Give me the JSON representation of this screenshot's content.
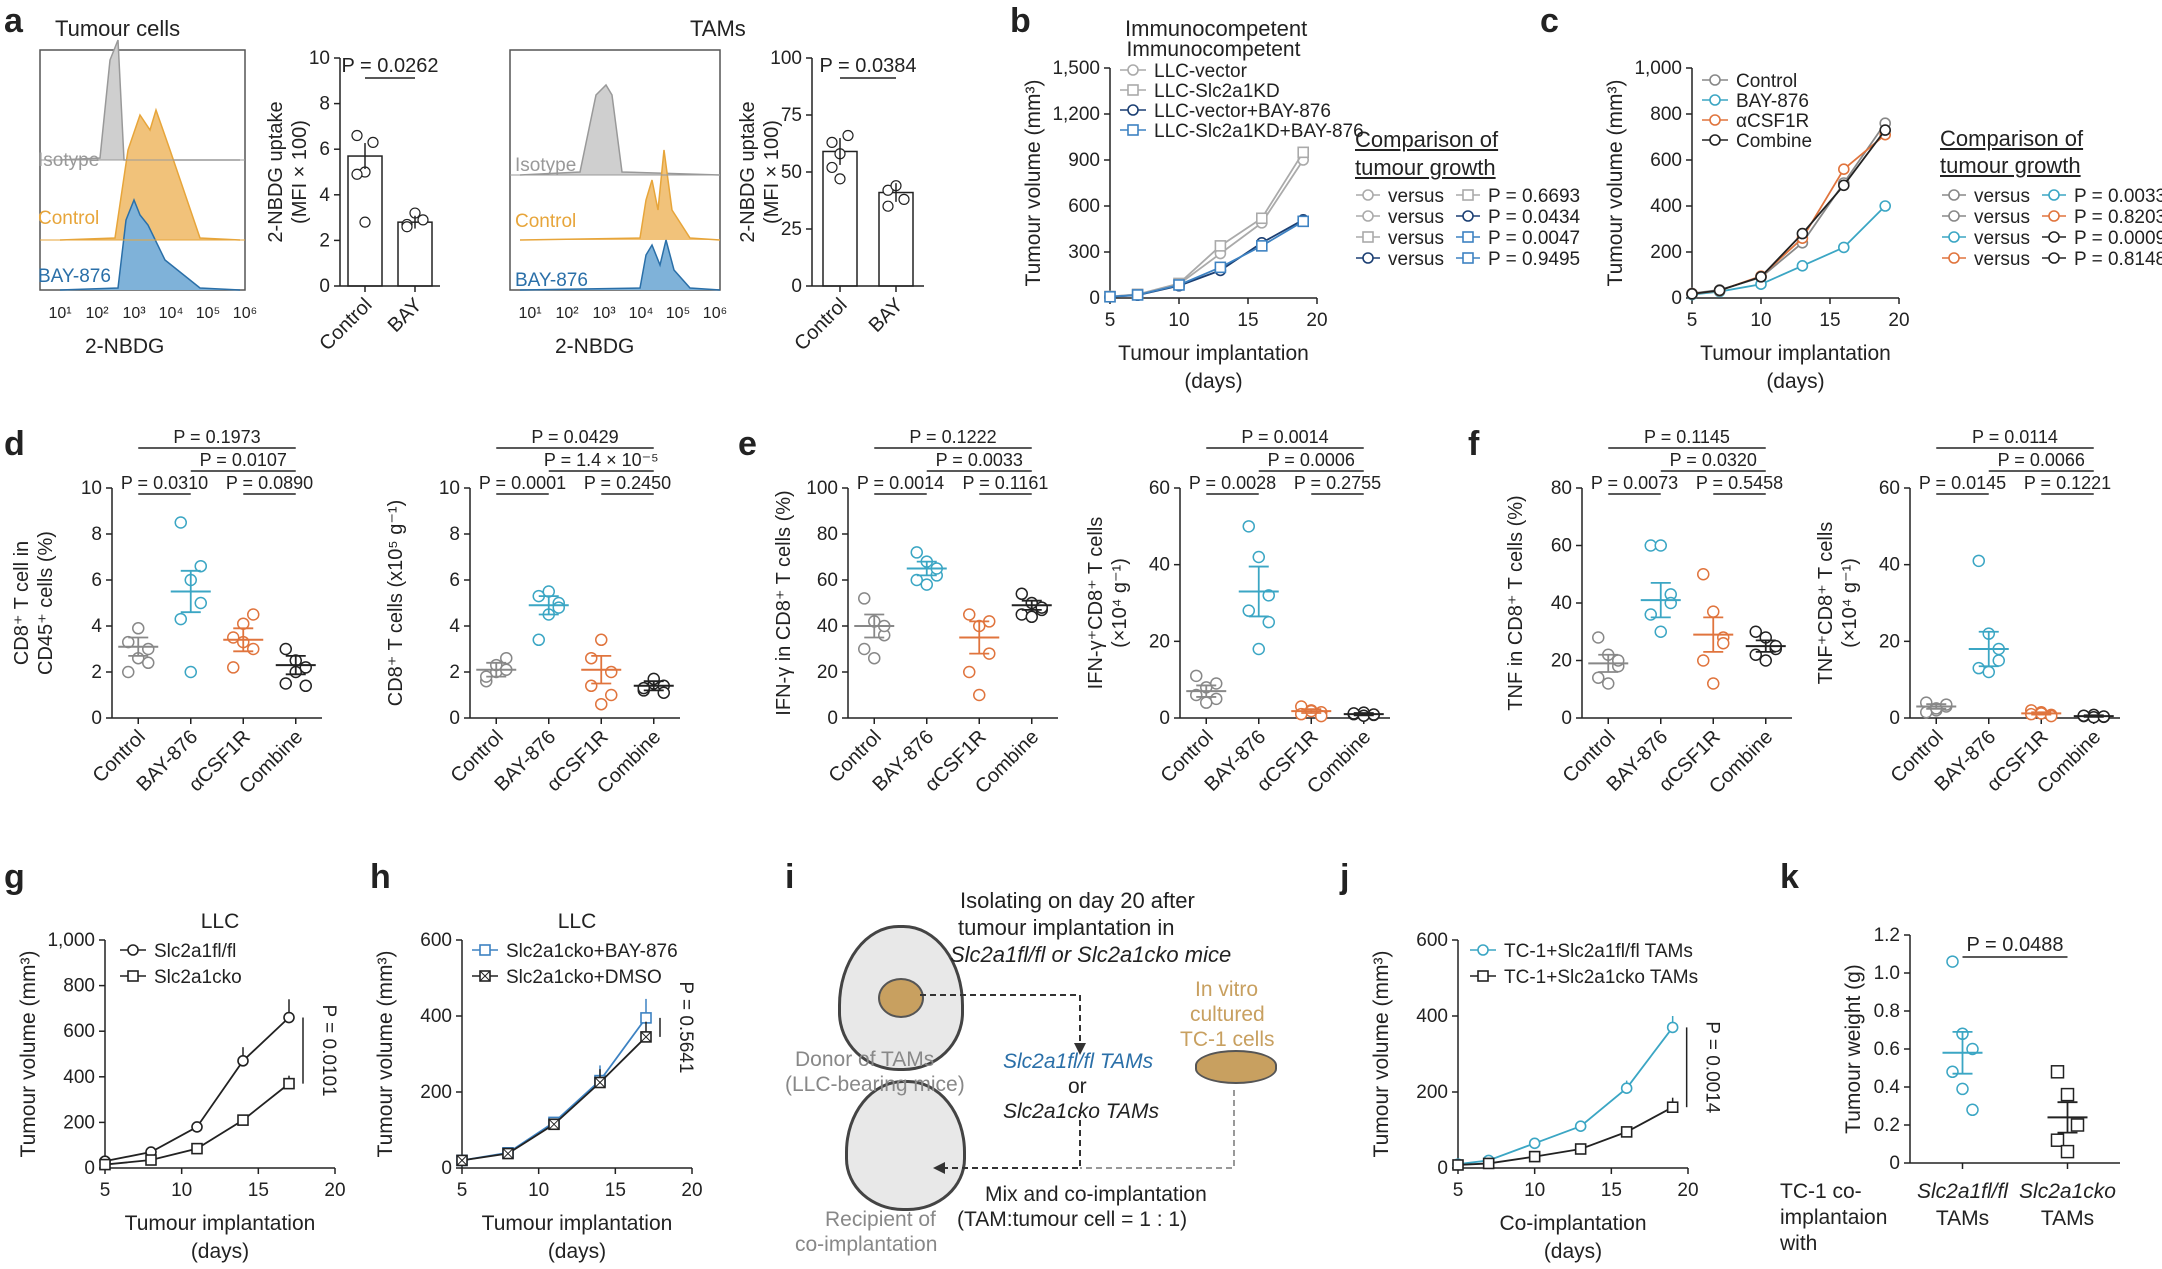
{
  "colors": {
    "grey": "#8c8c8c",
    "orange": "#e7a53a",
    "blue": "#2a6fa8",
    "teal": "#3ba6c4",
    "red": "#e0743d",
    "black": "#222222",
    "navy": "#1b3f73",
    "lightblue": "#3d82c2",
    "tan": "#c8a060"
  },
  "panel_labels": [
    "a",
    "b",
    "c",
    "d",
    "e",
    "f",
    "g",
    "h",
    "i",
    "j",
    "k"
  ],
  "a": {
    "tumour_title": "Tumour cells",
    "tams_title": "TAMs",
    "iso": "Isotype",
    "control": "Control",
    "bay": "BAY-876",
    "xlab": "2-NBDG",
    "xticks": [
      "10¹",
      "10²",
      "10³",
      "10⁴",
      "10⁵",
      "10⁶"
    ],
    "ylab1": "2-NBDG uptake",
    "ylab2": "(MFI × 100)"
  },
  "b": {
    "title": "Immunocompetent",
    "comparison": "Comparison of",
    "comparison2": "tumour growth",
    "versus": "versus",
    "legend": [
      "LLC-vector",
      "LLC-Slc2a1KD",
      "LLC-vector+BAY-876",
      "LLC-Slc2a1KD+BAY-876"
    ],
    "pvals": [
      "P = 0.6693",
      "P = 0.0434",
      "P = 0.0047",
      "P = 0.9495"
    ]
  },
  "c": {
    "comparison": "Comparison of",
    "comparison2": "tumour growth",
    "versus": "versus",
    "legend": [
      "Control",
      "BAY-876",
      "αCSF1R",
      "Combine"
    ],
    "pvals": [
      "P = 0.0033",
      "P = 0.8203",
      "P = 0.0009",
      "P = 0.8148"
    ]
  },
  "i": {
    "iso1": "Isolating on day 20 after",
    "iso2": "tumour implantation in",
    "iso3": "Slc2a1fl/fl or Slc2a1cko mice",
    "donor1": "Donor of TAMs",
    "donor2": "(LLC-bearing mice)",
    "tams1": "Slc2a1fl/fl TAMs",
    "or": "or",
    "tams2": "Slc2a1cko TAMs",
    "vitro1": "In vitro",
    "vitro2": "cultured",
    "vitro3": "TC-1 cells",
    "mix1": "Mix and co-implantation",
    "mix2": "(TAM:tumour cell = 1 : 1)",
    "recip1": "Recipient of",
    "recip2": "co-implantation"
  },
  "k": {
    "with1": "TC-1 co-",
    "with2": "implantaion",
    "with3": "with"
  },
  "chart_data": [
    {
      "id": "a1",
      "type": "bar",
      "categories": [
        "Control",
        "BAY"
      ],
      "values": [
        5.7,
        2.8
      ],
      "points": [
        [
          6.6,
          5.0,
          6.3,
          4.9,
          2.8
        ],
        [
          2.7,
          3.2,
          2.9,
          2.6
        ]
      ],
      "ylim": [
        0,
        10
      ],
      "yticks": [
        0,
        2,
        4,
        6,
        8,
        10
      ],
      "ylabel": "2-NBDG uptake (MFI × 100)",
      "annotation": "P = 0.0262"
    },
    {
      "id": "a2",
      "type": "bar",
      "categories": [
        "Control",
        "BAY"
      ],
      "values": [
        59,
        41
      ],
      "points": [
        [
          63,
          58,
          66,
          52,
          47
        ],
        [
          42,
          44,
          38,
          35
        ]
      ],
      "ylim": [
        0,
        100
      ],
      "yticks": [
        0,
        25,
        50,
        75,
        100
      ],
      "ylabel": "2-NBDG uptake (MFI × 100)",
      "annotation": "P = 0.0384"
    },
    {
      "id": "b",
      "type": "line",
      "title": "Immunocompetent",
      "x": [
        5,
        7,
        10,
        13,
        16,
        19
      ],
      "xlim": [
        5,
        20
      ],
      "xticks": [
        5,
        10,
        15,
        20
      ],
      "ylim": [
        0,
        1500
      ],
      "yticks": [
        0,
        300,
        600,
        900,
        1200,
        1500
      ],
      "yticklabels": [
        "0",
        "300",
        "600",
        "900",
        "1,200",
        "1,500"
      ],
      "xlabel": "Tumour implantation (days)",
      "ylabel": "Tumour volume (mm³)",
      "series": [
        {
          "name": "LLC-vector",
          "values": [
            10,
            22,
            90,
            290,
            490,
            900
          ]
        },
        {
          "name": "LLC-Slc2a1KD",
          "values": [
            10,
            24,
            95,
            340,
            520,
            950
          ]
        },
        {
          "name": "LLC-vector+BAY-876",
          "values": [
            8,
            18,
            80,
            180,
            360,
            510
          ]
        },
        {
          "name": "LLC-Slc2a1KD+BAY-876",
          "values": [
            8,
            20,
            85,
            200,
            340,
            500
          ]
        }
      ]
    },
    {
      "id": "c",
      "type": "line",
      "x": [
        5,
        7,
        10,
        13,
        16,
        19
      ],
      "xlim": [
        5,
        20
      ],
      "xticks": [
        5,
        10,
        15,
        20
      ],
      "ylim": [
        0,
        1000
      ],
      "yticks": [
        0,
        200,
        400,
        600,
        800,
        1000
      ],
      "yticklabels": [
        "0",
        "200",
        "400",
        "600",
        "800",
        "1,000"
      ],
      "xlabel": "Tumour implantation (days)",
      "ylabel": "Tumour volume (mm³)",
      "series": [
        {
          "name": "Control",
          "values": [
            20,
            35,
            90,
            240,
            500,
            760
          ]
        },
        {
          "name": "BAY-876",
          "values": [
            15,
            28,
            60,
            140,
            220,
            400
          ]
        },
        {
          "name": "αCSF1R",
          "values": [
            18,
            32,
            95,
            260,
            560,
            710
          ]
        },
        {
          "name": "Combine",
          "values": [
            18,
            33,
            92,
            280,
            490,
            730
          ]
        }
      ]
    },
    {
      "id": "d1",
      "type": "scatter",
      "categories": [
        "Control",
        "BAY-876",
        "αCSF1R",
        "Combine"
      ],
      "ylim": [
        0,
        10
      ],
      "yticks": [
        0,
        2,
        4,
        6,
        8,
        10
      ],
      "ylabel": "CD8+ T cell in CD45+ cells (%)",
      "means": [
        3.1,
        5.5,
        3.4,
        2.3
      ],
      "sems": [
        0.4,
        0.9,
        0.5,
        0.4
      ],
      "points": [
        [
          2.0,
          2.6,
          3.0,
          3.3,
          3.9,
          2.4
        ],
        [
          8.5,
          6.0,
          5.0,
          4.3,
          2.0,
          6.6
        ],
        [
          3.5,
          4.1,
          3.0,
          2.2,
          3.3,
          4.5
        ],
        [
          3.0,
          2.5,
          1.4,
          1.5,
          2.0,
          2.2
        ]
      ],
      "comparisons": [
        [
          "P = 0.0310",
          0,
          1
        ],
        [
          "P = 0.1973",
          0,
          3
        ],
        [
          "P = 0.0107",
          1,
          3
        ],
        [
          "P = 0.0890",
          2,
          3
        ]
      ]
    },
    {
      "id": "d2",
      "type": "scatter",
      "categories": [
        "Control",
        "BAY-876",
        "αCSF1R",
        "Combine"
      ],
      "ylim": [
        0,
        10
      ],
      "yticks": [
        0,
        2,
        4,
        6,
        8,
        10
      ],
      "ylabel": "CD8+ T cells (x10⁵ g⁻¹)",
      "means": [
        2.1,
        4.9,
        2.1,
        1.4
      ],
      "sems": [
        0.3,
        0.4,
        0.6,
        0.2
      ],
      "points": [
        [
          1.6,
          2.0,
          2.6,
          1.8,
          2.3,
          2.1
        ],
        [
          5.3,
          4.5,
          5.0,
          3.4,
          5.5,
          4.8
        ],
        [
          2.6,
          3.4,
          1.0,
          1.4,
          0.6,
          2.0
        ],
        [
          1.2,
          1.5,
          1.4,
          1.3,
          1.7,
          1.1
        ]
      ],
      "comparisons": [
        [
          "P = 0.0001",
          0,
          1
        ],
        [
          "P = 0.0429",
          0,
          3
        ],
        [
          "P = 1.4 × 10⁻⁵",
          1,
          3
        ],
        [
          "P = 0.2450",
          2,
          3
        ]
      ]
    },
    {
      "id": "e1",
      "type": "scatter",
      "categories": [
        "Control",
        "BAY-876",
        "αCSF1R",
        "Combine"
      ],
      "ylim": [
        0,
        100
      ],
      "yticks": [
        0,
        20,
        40,
        60,
        80,
        100
      ],
      "ylabel": "IFN-γ in CD8+ T cells (%)",
      "means": [
        40,
        65,
        35,
        49
      ],
      "sems": [
        5,
        3,
        7,
        2
      ],
      "points": [
        [
          52,
          42,
          36,
          30,
          26,
          40
        ],
        [
          72,
          68,
          62,
          60,
          58,
          65
        ],
        [
          45,
          40,
          28,
          20,
          10,
          42
        ],
        [
          54,
          50,
          47,
          45,
          44,
          48
        ]
      ],
      "comparisons": [
        [
          "P = 0.0014",
          0,
          1
        ],
        [
          "P = 0.1222",
          0,
          3
        ],
        [
          "P = 0.0033",
          1,
          3
        ],
        [
          "P = 0.1161",
          2,
          3
        ]
      ]
    },
    {
      "id": "e2",
      "type": "scatter",
      "categories": [
        "Control",
        "BAY-876",
        "αCSF1R",
        "Combine"
      ],
      "ylim": [
        0,
        60
      ],
      "yticks": [
        0,
        20,
        40,
        60
      ],
      "ylabel": "IFN-γ+CD8+ T cells (×10⁴ g⁻¹)",
      "means": [
        7,
        33,
        1.8,
        1
      ],
      "sems": [
        1.5,
        6.5,
        0.5,
        0.3
      ],
      "points": [
        [
          11,
          8,
          5,
          6,
          4,
          9
        ],
        [
          50,
          42,
          32,
          28,
          18,
          25
        ],
        [
          3,
          2,
          1.5,
          1,
          1.8,
          0.5
        ],
        [
          1,
          1.4,
          0.8,
          1.2,
          0.6,
          0.9
        ]
      ],
      "comparisons": [
        [
          "P = 0.0028",
          0,
          1
        ],
        [
          "P = 0.0014",
          0,
          3
        ],
        [
          "P = 0.0006",
          1,
          3
        ],
        [
          "P = 0.2755",
          2,
          3
        ]
      ]
    },
    {
      "id": "f1",
      "type": "scatter",
      "categories": [
        "Control",
        "BAY-876",
        "αCSF1R",
        "Combine"
      ],
      "ylim": [
        0,
        80
      ],
      "yticks": [
        0,
        20,
        40,
        60,
        80
      ],
      "ylabel": "TNF in CD8+ T cells (%)",
      "means": [
        19,
        41,
        29,
        25
      ],
      "sems": [
        3,
        6,
        6,
        2
      ],
      "points": [
        [
          28,
          22,
          18,
          14,
          12,
          20
        ],
        [
          60,
          60,
          43,
          36,
          30,
          40
        ],
        [
          50,
          37,
          28,
          20,
          12,
          26
        ],
        [
          30,
          28,
          24,
          22,
          20,
          25
        ]
      ],
      "comparisons": [
        [
          "P = 0.0073",
          0,
          1
        ],
        [
          "P = 0.1145",
          0,
          3
        ],
        [
          "P = 0.0320",
          1,
          3
        ],
        [
          "P = 0.5458",
          2,
          3
        ]
      ]
    },
    {
      "id": "f2",
      "type": "scatter",
      "categories": [
        "Control",
        "BAY-876",
        "αCSF1R",
        "Combine"
      ],
      "ylim": [
        0,
        60
      ],
      "yticks": [
        0,
        20,
        40,
        60
      ],
      "ylabel": "TNF+CD8+ T cells (×10⁴ g⁻¹)",
      "means": [
        3,
        18,
        1.2,
        0.5
      ],
      "sems": [
        0.6,
        4.5,
        0.3,
        0.2
      ],
      "points": [
        [
          4,
          2,
          3,
          1.5,
          2.5,
          3.5
        ],
        [
          41,
          22,
          18,
          13,
          12,
          15
        ],
        [
          2,
          1.5,
          0.8,
          1,
          1.2,
          0.5
        ],
        [
          0.5,
          0.8,
          0.3,
          0.6,
          0.2,
          0.4
        ]
      ],
      "comparisons": [
        [
          "P = 0.0145",
          0,
          1
        ],
        [
          "P = 0.0114",
          0,
          3
        ],
        [
          "P = 0.0066",
          1,
          3
        ],
        [
          "P = 0.1221",
          2,
          3
        ]
      ]
    },
    {
      "id": "g",
      "type": "line",
      "title": "LLC",
      "x": [
        5,
        8,
        11,
        14,
        17
      ],
      "xlim": [
        5,
        20
      ],
      "xticks": [
        5,
        10,
        15,
        20
      ],
      "ylim": [
        0,
        1000
      ],
      "yticks": [
        0,
        200,
        400,
        600,
        800,
        1000
      ],
      "yticklabels": [
        "0",
        "200",
        "400",
        "600",
        "800",
        "1,000"
      ],
      "xlabel": "Tumour implantation (days)",
      "ylabel": "Tumour volume (mm³)",
      "annotation": "P = 0.0101",
      "series": [
        {
          "name": "Slc2a1fl/fl",
          "values": [
            30,
            70,
            180,
            470,
            660
          ],
          "errors": [
            0,
            0,
            15,
            60,
            80
          ]
        },
        {
          "name": "Slc2a1cko",
          "values": [
            15,
            35,
            85,
            210,
            370
          ],
          "errors": [
            0,
            0,
            10,
            15,
            35
          ]
        }
      ]
    },
    {
      "id": "h",
      "type": "line",
      "title": "LLC",
      "x": [
        5,
        8,
        11,
        14,
        17
      ],
      "xlim": [
        5,
        20
      ],
      "xticks": [
        5,
        10,
        15,
        20
      ],
      "ylim": [
        0,
        600
      ],
      "yticks": [
        0,
        200,
        400,
        600
      ],
      "xlabel": "Tumour implantation (days)",
      "ylabel": "Tumour volume (mm³)",
      "annotation": "P = 0.5641",
      "series": [
        {
          "name": "Slc2a1cko+BAY-876",
          "values": [
            20,
            40,
            120,
            230,
            395
          ],
          "errors": [
            0,
            0,
            10,
            40,
            50
          ]
        },
        {
          "name": "Slc2a1cko+DMSO",
          "values": [
            20,
            38,
            115,
            225,
            345
          ],
          "errors": [
            0,
            0,
            10,
            35,
            40
          ]
        }
      ]
    },
    {
      "id": "j",
      "type": "line",
      "x": [
        5,
        7,
        10,
        13,
        16,
        19
      ],
      "xlim": [
        5,
        20
      ],
      "xticks": [
        5,
        10,
        15,
        20
      ],
      "ylim": [
        0,
        600
      ],
      "yticks": [
        0,
        200,
        400,
        600
      ],
      "xlabel": "Co-implantation (days)",
      "ylabel": "Tumour volume (mm³)",
      "annotation": "P = 0.0014",
      "series": [
        {
          "name": "TC-1+Slc2a1fl/fl TAMs",
          "values": [
            10,
            20,
            65,
            110,
            210,
            370
          ],
          "errors": [
            0,
            0,
            0,
            10,
            20,
            30
          ]
        },
        {
          "name": "TC-1+Slc2a1cko TAMs",
          "values": [
            8,
            12,
            30,
            50,
            95,
            160
          ],
          "errors": [
            0,
            0,
            0,
            5,
            10,
            25
          ]
        }
      ]
    },
    {
      "id": "k",
      "type": "scatter",
      "categories": [
        "Slc2a1fl/fl TAMs",
        "Slc2a1cko TAMs"
      ],
      "ylim": [
        0,
        1.2
      ],
      "yticks": [
        0,
        0.2,
        0.4,
        0.6,
        0.8,
        1.0,
        1.2
      ],
      "yticklabels": [
        "0",
        "0.2",
        "0.4",
        "0.6",
        "0.8",
        "1.0",
        "1.2"
      ],
      "ylabel": "Tumour weight (g)",
      "means": [
        0.58,
        0.24
      ],
      "sems": [
        0.11,
        0.08
      ],
      "points": [
        [
          1.06,
          0.68,
          0.6,
          0.48,
          0.39,
          0.28
        ],
        [
          0.48,
          0.36,
          0.2,
          0.12,
          0.06
        ]
      ],
      "annotation": "P = 0.0488"
    }
  ]
}
